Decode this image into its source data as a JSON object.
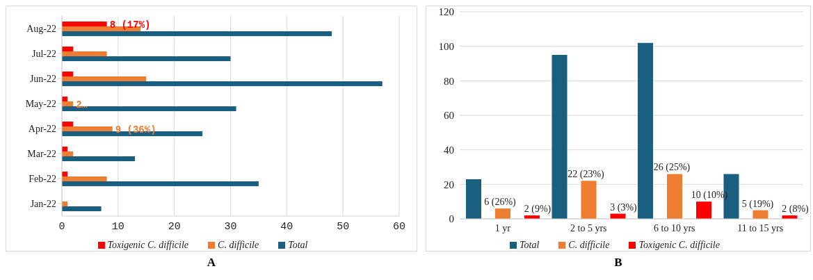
{
  "chart_data": [
    {
      "type": "bar",
      "orientation": "horizontal",
      "title": "A",
      "categories": [
        "Aug-22",
        "Jul-22",
        "Jun-22",
        "May-22",
        "Apr-22",
        "Mar-22",
        "Feb-22",
        "Jan-22"
      ],
      "series": [
        {
          "name": "Toxigenic C. difficile",
          "color": "#ff0000",
          "values": [
            8,
            2,
            2,
            1,
            2,
            1,
            1,
            0
          ],
          "value_labels": [
            "8 (17%)",
            null,
            null,
            null,
            null,
            null,
            null,
            null
          ]
        },
        {
          "name": "C. difficile",
          "color": "#ed7d31",
          "values": [
            14,
            8,
            15,
            2,
            9,
            2,
            8,
            1
          ],
          "value_labels": [
            null,
            null,
            null,
            "2…",
            "9 (36%)",
            null,
            null,
            null
          ]
        },
        {
          "name": "Total",
          "color": "#1a5e80",
          "values": [
            48,
            30,
            57,
            31,
            25,
            13,
            35,
            7
          ]
        }
      ],
      "xlim": [
        0,
        60
      ],
      "xticks": [
        0,
        10,
        20,
        30,
        40,
        50,
        60
      ],
      "grid": "x",
      "legend": "bottom"
    },
    {
      "type": "bar",
      "title": "B",
      "categories": [
        "1 yr",
        "2 to 5 yrs",
        "6 to 10 yrs",
        "11 to 15 yrs"
      ],
      "series": [
        {
          "name": "Total",
          "color": "#1a5e80",
          "values": [
            23,
            95,
            102,
            26
          ]
        },
        {
          "name": "C. difficile",
          "color": "#ed7d31",
          "values": [
            6,
            22,
            26,
            5
          ],
          "value_labels": [
            "6 (26%)",
            "22 (23%)",
            "26 (25%)",
            "5 (19%)"
          ]
        },
        {
          "name": "Toxigenic C. difficile",
          "color": "#ff0000",
          "values": [
            2,
            3,
            10,
            2
          ],
          "value_labels": [
            "2 (9%)",
            "3 (3%)",
            "10 (10%)",
            "2 (8%)"
          ]
        }
      ],
      "ylim": [
        0,
        120
      ],
      "yticks": [
        0,
        20,
        40,
        60,
        80,
        100,
        120
      ],
      "grid": "y",
      "legend": "bottom"
    }
  ]
}
